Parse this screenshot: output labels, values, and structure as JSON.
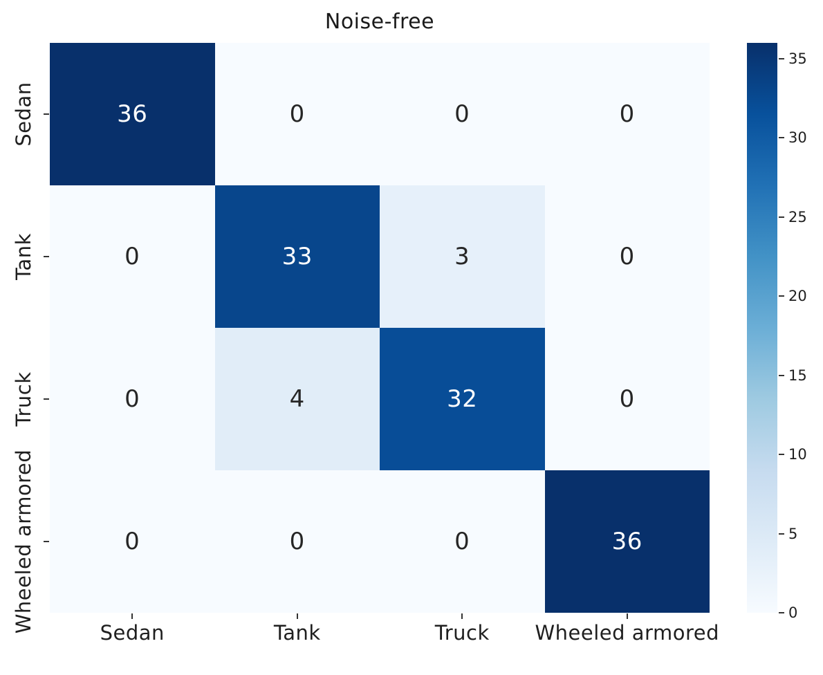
{
  "chart_data": {
    "type": "heatmap",
    "title": "Noise-free",
    "x_tick_labels": [
      "Sedan",
      "Tank",
      "Truck",
      "Wheeled armored"
    ],
    "y_tick_labels": [
      "Sedan",
      "Tank",
      "Truck",
      "Wheeled armored"
    ],
    "rows": [
      [
        36,
        0,
        0,
        0
      ],
      [
        0,
        33,
        3,
        0
      ],
      [
        0,
        4,
        32,
        0
      ],
      [
        0,
        0,
        0,
        36
      ]
    ],
    "vmin": 0,
    "vmax": 36,
    "colorbar_ticks": [
      0,
      5,
      10,
      15,
      20,
      25,
      30,
      35
    ],
    "colormap": {
      "name": "Blues",
      "stops": [
        "#f7fbff",
        "#deebf7",
        "#c6dbef",
        "#9ecae1",
        "#6baed6",
        "#4292c6",
        "#2171b5",
        "#08519c",
        "#08306b"
      ]
    },
    "annotation_color_on_dark": "#ffffff",
    "annotation_color_on_light": "#262626",
    "tick_color": "#333333",
    "title_color": "#1a1a1a",
    "background": "#ffffff",
    "legend_position": "right-colorbar",
    "grid": false
  }
}
